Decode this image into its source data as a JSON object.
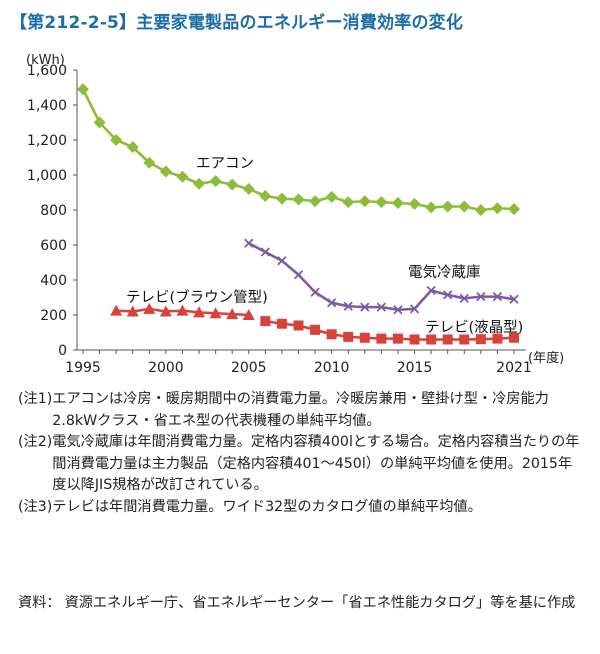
{
  "title": "【第212-2-5】主要家電製品のエネルギー消費効率の変化",
  "chart_data": {
    "type": "line",
    "ylabel": "(kWh)",
    "xlabel": "(年度)",
    "ylim": [
      0,
      1600
    ],
    "y_ticks": [
      "0",
      "200",
      "400",
      "600",
      "800",
      "1,000",
      "1,200",
      "1,400",
      "1,600"
    ],
    "x_ticks": [
      "1995",
      "2000",
      "2005",
      "2010",
      "2015",
      "2021"
    ],
    "grid": false,
    "series": [
      {
        "name": "エアコン",
        "color": "#8cbd3a",
        "marker": "diamond",
        "x": [
          1995,
          1996,
          1997,
          1998,
          1999,
          2000,
          2001,
          2002,
          2003,
          2004,
          2005,
          2006,
          2007,
          2008,
          2009,
          2010,
          2011,
          2012,
          2013,
          2014,
          2015,
          2016,
          2017,
          2018,
          2019,
          2020,
          2021
        ],
        "values": [
          1490,
          1300,
          1200,
          1160,
          1070,
          1020,
          990,
          950,
          965,
          945,
          920,
          880,
          865,
          860,
          850,
          875,
          845,
          850,
          845,
          840,
          835,
          815,
          820,
          820,
          800,
          810,
          805
        ]
      },
      {
        "name": "電気冷蔵庫",
        "color": "#7d5aa6",
        "marker": "x",
        "x": [
          2005,
          2006,
          2007,
          2008,
          2009,
          2010,
          2011,
          2012,
          2013,
          2014,
          2015,
          2016,
          2017,
          2018,
          2019,
          2020,
          2021
        ],
        "values": [
          610,
          560,
          510,
          430,
          330,
          270,
          250,
          245,
          245,
          230,
          235,
          340,
          315,
          295,
          305,
          305,
          290
        ]
      },
      {
        "name": "テレビ(ブラウン管型)",
        "color": "#d9423a",
        "marker": "triangle",
        "x": [
          1997,
          1998,
          1999,
          2000,
          2001,
          2002,
          2003,
          2004,
          2005
        ],
        "values": [
          225,
          220,
          235,
          220,
          225,
          215,
          210,
          205,
          200
        ]
      },
      {
        "name": "テレビ(液晶型)",
        "color": "#d9423a",
        "marker": "square",
        "x": [
          2006,
          2007,
          2008,
          2009,
          2010,
          2011,
          2012,
          2013,
          2014,
          2015,
          2016,
          2017,
          2018,
          2019,
          2020,
          2021
        ],
        "values": [
          165,
          150,
          140,
          115,
          90,
          75,
          70,
          65,
          65,
          60,
          60,
          60,
          60,
          62,
          65,
          70
        ]
      }
    ]
  },
  "notes": [
    {
      "label": "(注1)",
      "text": "エアコンは冷房・暖房期間中の消費電力量。冷暖房兼用・壁掛け型・冷房能力2.8kWクラス・省エネ型の代表機種の単純平均値。"
    },
    {
      "label": "(注2)",
      "text": "電気冷蔵庫は年間消費電力量。定格内容積400lとする場合。定格内容積当たりの年間消費電力量は主力製品（定格内容積401～450l）の単純平均値を使用。2015年度以降JIS規格が改訂されている。"
    },
    {
      "label": "(注3)",
      "text": "テレビは年間消費電力量。ワイド32型のカタログ値の単純平均値。"
    }
  ],
  "source": {
    "label": "資料：",
    "text": "資源エネルギー庁、省エネルギーセンター「省エネ性能カタログ」等を基に作成"
  }
}
